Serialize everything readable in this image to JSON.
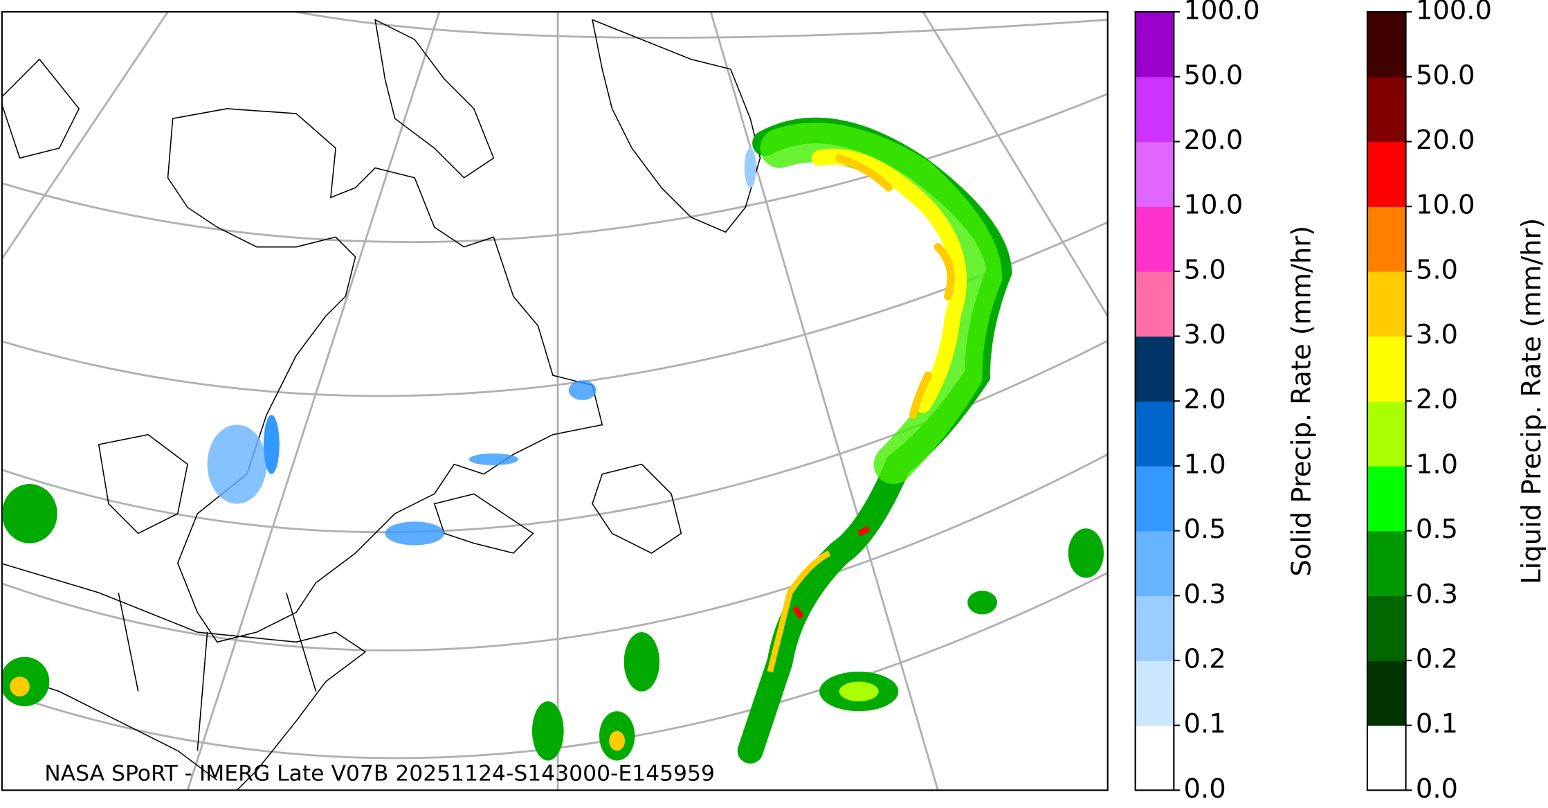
{
  "caption": "NASA SPoRT - IMERG Late V07B 20251124-S143000-E145959",
  "colorbars": [
    {
      "label": "Solid Precip. Rate (mm/hr)",
      "ticks": [
        "0.0",
        "0.1",
        "0.2",
        "0.3",
        "0.5",
        "1.0",
        "2.0",
        "3.0",
        "5.0",
        "10.0",
        "20.0",
        "50.0",
        "100.0"
      ],
      "colors": [
        "#ffffff",
        "#cce6ff",
        "#99ccff",
        "#66b3ff",
        "#3399ff",
        "#0066cc",
        "#003366",
        "#ff6ea8",
        "#ff33cc",
        "#e066ff",
        "#cc33ff",
        "#9900cc"
      ]
    },
    {
      "label": "Liquid Precip. Rate (mm/hr)",
      "ticks": [
        "0.0",
        "0.1",
        "0.2",
        "0.3",
        "0.5",
        "1.0",
        "2.0",
        "3.0",
        "5.0",
        "10.0",
        "20.0",
        "50.0",
        "100.0"
      ],
      "colors": [
        "#ffffff",
        "#003300",
        "#006600",
        "#009900",
        "#00ff00",
        "#aaff00",
        "#ffff00",
        "#ffcc00",
        "#ff8000",
        "#ff0000",
        "#800000",
        "#400000"
      ]
    }
  ]
}
